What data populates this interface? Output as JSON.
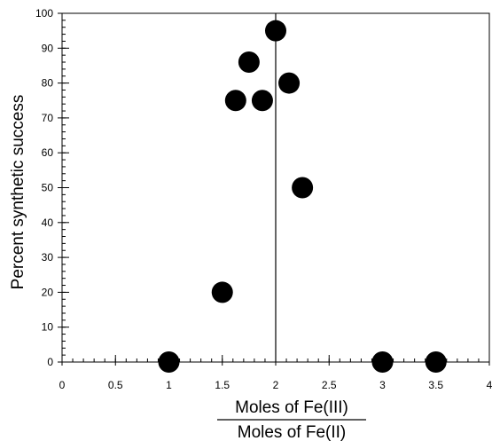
{
  "chart_data": {
    "type": "scatter",
    "title": "",
    "ylabel": "Percent synthetic success",
    "xlabel_numerator": "Moles of Fe(III)",
    "xlabel_denominator": "Moles of Fe(II)",
    "xlim": [
      0,
      4
    ],
    "ylim": [
      0,
      100
    ],
    "xticks": [
      0,
      0.5,
      1,
      1.5,
      2,
      2.5,
      3,
      3.5,
      4
    ],
    "xtick_labels": [
      "0",
      "0.5",
      "1",
      "1.5",
      "2",
      "2.5",
      "3",
      "3.5",
      "4"
    ],
    "yticks": [
      0,
      10,
      20,
      30,
      40,
      50,
      60,
      70,
      80,
      90,
      100
    ],
    "ytick_labels": [
      "0",
      "10",
      "20",
      "30",
      "40",
      "50",
      "60",
      "70",
      "80",
      "90",
      "100"
    ],
    "x_minor_step": 0.1,
    "y_minor_step": 2,
    "reference_line_x": 2,
    "grid": false,
    "marker_color": "#000000",
    "points": [
      {
        "x": 1.0,
        "y": 0
      },
      {
        "x": 1.5,
        "y": 20
      },
      {
        "x": 1.625,
        "y": 75
      },
      {
        "x": 1.75,
        "y": 86
      },
      {
        "x": 1.875,
        "y": 75
      },
      {
        "x": 2.0,
        "y": 95
      },
      {
        "x": 2.125,
        "y": 80
      },
      {
        "x": 2.25,
        "y": 50
      },
      {
        "x": 3.0,
        "y": 0
      },
      {
        "x": 3.5,
        "y": 0
      }
    ]
  }
}
